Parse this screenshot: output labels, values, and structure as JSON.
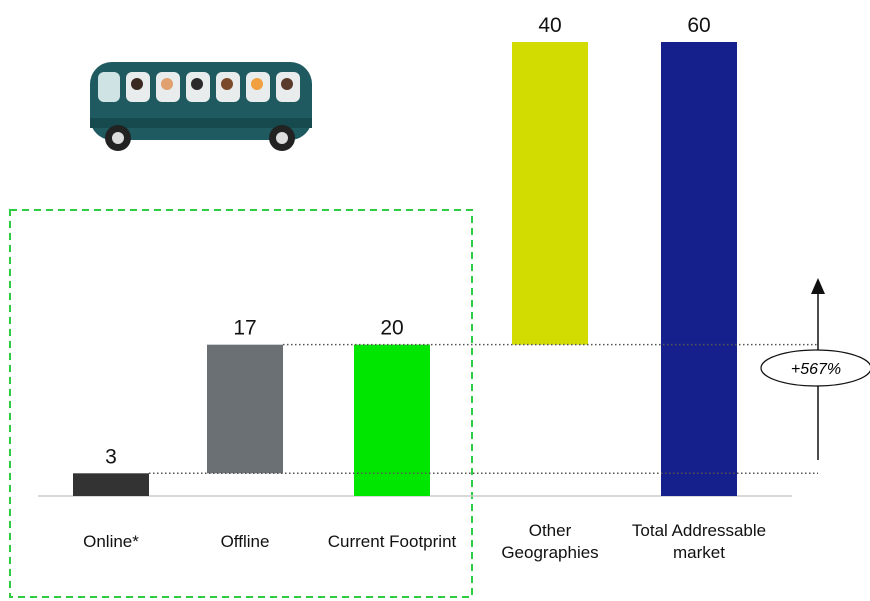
{
  "chart_data": {
    "type": "waterfall",
    "categories": [
      "Online*",
      "Offline",
      "Current Footprint",
      "Other Geographies",
      "Total Addressable market"
    ],
    "values": [
      3,
      17,
      20,
      40,
      60
    ],
    "bar_types": [
      "delta",
      "delta",
      "total",
      "delta",
      "total"
    ],
    "colors": [
      "#333333",
      "#6b7075",
      "#00e600",
      "#d2dc00",
      "#16208c"
    ],
    "ylim": [
      0,
      60
    ],
    "annotation": "+567%"
  }
}
